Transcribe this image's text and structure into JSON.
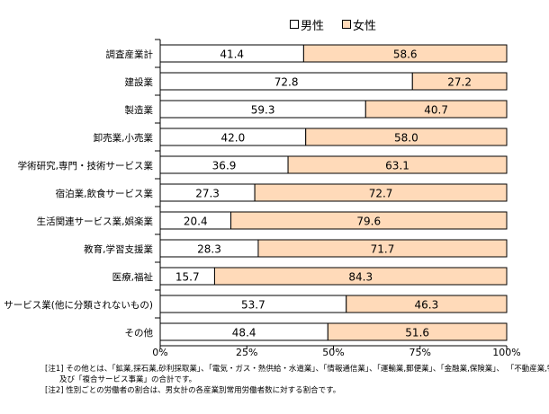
{
  "chart_data": {
    "type": "bar",
    "orientation": "horizontal",
    "stacked": "percent",
    "categories": [
      "調査産業計",
      "建設業",
      "製造業",
      "卸売業,小売業",
      "学術研究,専門・技術サービス業",
      "宿泊業,飲食サービス業",
      "生活関連サービス業,娯楽業",
      "教育,学習支援業",
      "医療,福祉",
      "サービス業(他に分類されないもの)",
      "その他"
    ],
    "series": [
      {
        "name": "男性",
        "color": "#FFFFFF",
        "values": [
          41.4,
          72.8,
          59.3,
          42.0,
          36.9,
          27.3,
          20.4,
          28.3,
          15.7,
          53.7,
          48.4
        ]
      },
      {
        "name": "女性",
        "color": "#FFDAB9",
        "values": [
          58.6,
          27.2,
          40.7,
          58.0,
          63.1,
          72.7,
          79.6,
          71.7,
          84.3,
          46.3,
          51.6
        ]
      }
    ],
    "xlim": [
      0,
      100
    ],
    "xticks": [
      "0%",
      "25%",
      "50%",
      "75%",
      "100%"
    ],
    "legend": "top",
    "grid": false
  },
  "notes": [
    "[注1] その他とは、「鉱業,採石業,砂利採取業」、「電気・ガス・熱供給・水道業」、「情報通信業」、「運輸業,郵便業」、「金融業,保険業」、 「不動産業,物品賃貸業」",
    "及び「複合サービス事業」の合計です。",
    "[注2] 性別ごとの労働者の割合は、男女計の各産業別常用労働者数に対する割合です。"
  ]
}
